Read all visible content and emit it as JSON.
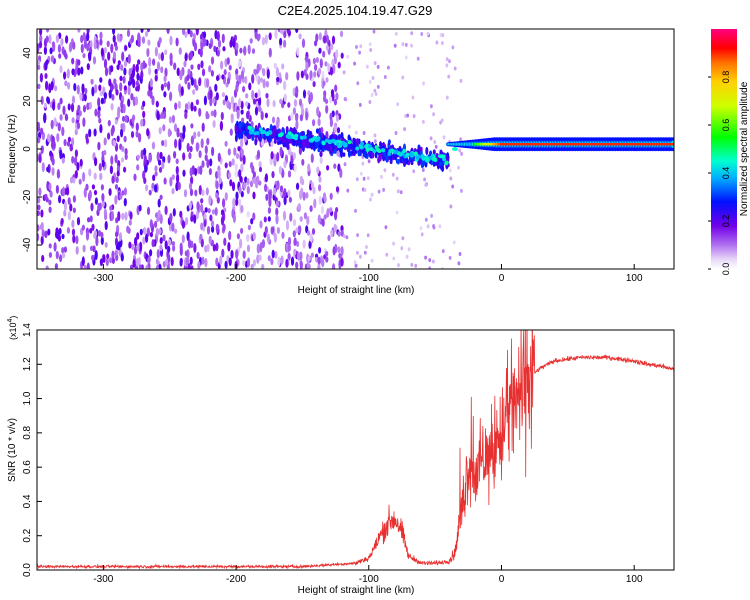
{
  "figure": {
    "title": "C2E4.2025.104.19.47.G29"
  },
  "chart_data": [
    {
      "type": "heatmap",
      "xlabel": "Height of straight line (km)",
      "ylabel": "Frequency (Hz)",
      "xlim": [
        -350,
        130
      ],
      "ylim": [
        -50,
        50
      ],
      "x_ticks": [
        -300,
        -200,
        -100,
        0,
        100
      ],
      "y_ticks": [
        -40,
        -20,
        0,
        20,
        40
      ],
      "colorbar": {
        "label": "Normalized spectral amplitude",
        "range": [
          0,
          1
        ],
        "ticks": [
          "0.0",
          "0.2",
          "0.4",
          "0.6",
          "0.8"
        ],
        "colormap": "rainbow (white-violet-blue-cyan-green-yellow-red-magenta)"
      },
      "features": {
        "carrier_line_freq_hz": 2,
        "dense_noise_region_km": [
          -350,
          -120
        ],
        "drifting_band": {
          "from_km": -200,
          "to_km": -40,
          "freq_from_hz": 8,
          "freq_to_hz": -5
        }
      }
    },
    {
      "type": "line",
      "xlabel": "Height of straight line (km)",
      "ylabel": "SNR (10 * v/v)",
      "y_multiplier": "(x10^4)",
      "xlim": [
        -350,
        130
      ],
      "ylim": [
        0,
        1.4
      ],
      "x_ticks": [
        -300,
        -200,
        -100,
        0,
        100
      ],
      "y_ticks": [
        "0.0",
        "0.2",
        "0.4",
        "0.6",
        "0.8",
        "1.0",
        "1.2",
        "1.4"
      ],
      "color": "#e83030",
      "series": [
        {
          "name": "",
          "x": [
            -350,
            -300,
            -250,
            -200,
            -150,
            -130,
            -110,
            -100,
            -95,
            -90,
            -85,
            -80,
            -75,
            -70,
            -60,
            -50,
            -40,
            -35,
            -30,
            -25,
            -20,
            -15,
            -10,
            -5,
            0,
            5,
            10,
            15,
            20,
            30,
            40,
            60,
            80,
            100,
            110,
            120,
            130
          ],
          "y": [
            0.02,
            0.02,
            0.02,
            0.02,
            0.02,
            0.03,
            0.04,
            0.07,
            0.14,
            0.22,
            0.28,
            0.3,
            0.22,
            0.08,
            0.04,
            0.04,
            0.05,
            0.1,
            0.35,
            0.62,
            0.55,
            0.62,
            0.66,
            0.72,
            0.8,
            0.9,
            0.96,
            1.05,
            1.12,
            1.18,
            1.22,
            1.24,
            1.24,
            1.22,
            1.2,
            1.19,
            1.17
          ]
        }
      ]
    }
  ]
}
